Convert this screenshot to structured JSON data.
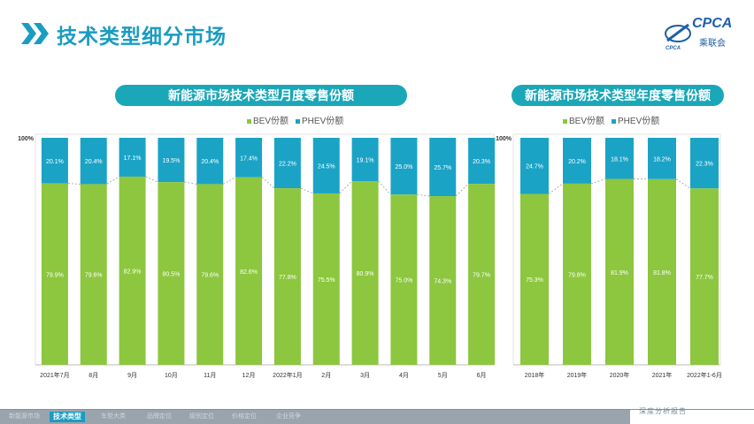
{
  "page_title": "技术类型细分市场",
  "logo": {
    "text": "CPCA",
    "sub": "乘联会",
    "mark": "CPCA"
  },
  "colors": {
    "bev": "#8dc63f",
    "phev": "#1ba3c6",
    "accent": "#1aa7b8",
    "title": "#1a9cc1"
  },
  "footer": {
    "items": [
      "新能源市场",
      "技术类型",
      "车型大类",
      "品牌定位",
      "级别定位",
      "价格定位",
      "企业竞争"
    ],
    "active_index": 1,
    "right_text": "深度分析报告"
  },
  "chart_data": [
    {
      "type": "bar",
      "stacked": true,
      "title": "新能源市场技术类型月度零售份额",
      "legend": [
        "BEV份额",
        "PHEV份额"
      ],
      "y_top_label": "100%",
      "categories": [
        "2021年7月",
        "8月",
        "9月",
        "10月",
        "11月",
        "12月",
        "2022年1月",
        "2月",
        "3月",
        "4月",
        "5月",
        "6月"
      ],
      "series": [
        {
          "name": "BEV份额",
          "values": [
            79.9,
            79.6,
            82.9,
            80.5,
            79.6,
            82.6,
            77.8,
            75.5,
            80.9,
            75.0,
            74.3,
            79.7
          ]
        },
        {
          "name": "PHEV份额",
          "values": [
            20.1,
            20.4,
            17.1,
            19.5,
            20.4,
            17.4,
            22.2,
            24.5,
            19.1,
            25.0,
            25.7,
            20.3
          ]
        }
      ],
      "ylim": [
        0,
        100
      ]
    },
    {
      "type": "bar",
      "stacked": true,
      "title": "新能源市场技术类型年度零售份额",
      "legend": [
        "BEV份额",
        "PHEV份额"
      ],
      "y_top_label": "100%",
      "categories": [
        "2018年",
        "2019年",
        "2020年",
        "2021年",
        "2022年1-6月"
      ],
      "series": [
        {
          "name": "BEV份额",
          "values": [
            75.3,
            79.8,
            81.9,
            81.8,
            77.7
          ]
        },
        {
          "name": "PHEV份额",
          "values": [
            24.7,
            20.2,
            18.1,
            18.2,
            22.3
          ]
        }
      ],
      "ylim": [
        0,
        100
      ]
    }
  ]
}
